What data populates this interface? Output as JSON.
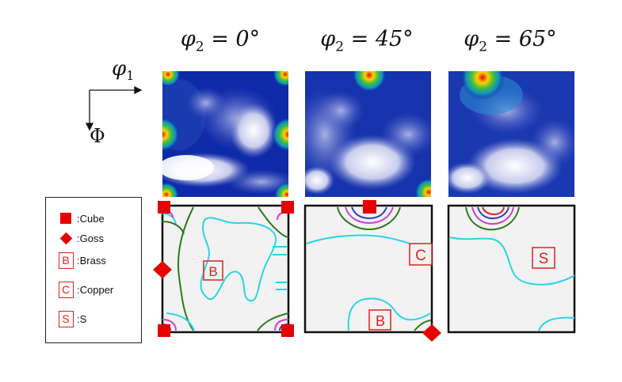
{
  "titles": [
    {
      "symbol": "φ",
      "sub": "2",
      "rest": " = 0°"
    },
    {
      "symbol": "φ",
      "sub": "2",
      "rest": " = 45°"
    },
    {
      "symbol": "φ",
      "sub": "2",
      "rest": " = 65°"
    }
  ],
  "axes": {
    "phi1_symbol": "φ",
    "phi1_sub": "1",
    "Phi": "Φ"
  },
  "legend": [
    {
      "symbol": "square",
      "label": ":Cube"
    },
    {
      "symbol": "diamond",
      "label": ":Goss"
    },
    {
      "symbol": "box-letter",
      "letter": "B",
      "label": ":Brass"
    },
    {
      "symbol": "box-letter",
      "letter": "C",
      "label": ":Copper"
    },
    {
      "symbol": "box-letter",
      "letter": "S",
      "label": ":S"
    }
  ],
  "markers": {
    "panel1_letter": "B",
    "panel2_letters": [
      "C",
      "B"
    ],
    "panel3_letter": "S"
  },
  "colors": {
    "marker_red": "#e60000",
    "contour_green": "#2d7a1e",
    "contour_cyan": "#2ad4e6",
    "contour_magenta": "#d040d0",
    "contour_blue": "#3040c0",
    "map_dark_blue": "#0a1f9c",
    "panel_bg": "#f2f2f2"
  }
}
